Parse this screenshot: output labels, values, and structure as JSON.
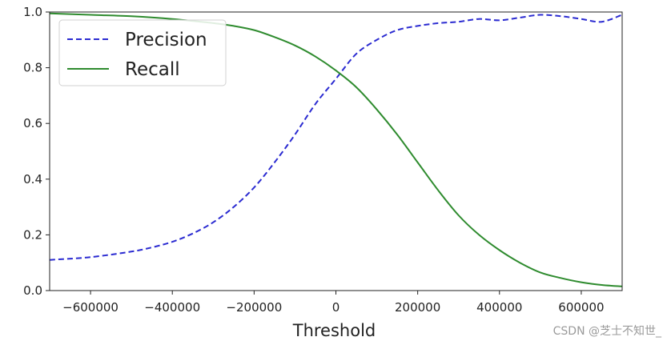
{
  "chart_data": {
    "type": "line",
    "title": "",
    "xlabel": "Threshold",
    "ylabel": "",
    "xlim": [
      -700000,
      700000
    ],
    "ylim": [
      0.0,
      1.0
    ],
    "xticks": [
      -600000,
      -400000,
      -200000,
      0,
      200000,
      400000,
      600000
    ],
    "xtick_labels": [
      "−600000",
      "−400000",
      "−200000",
      "0",
      "200000",
      "400000",
      "600000"
    ],
    "yticks": [
      0.0,
      0.2,
      0.4,
      0.6,
      0.8,
      1.0
    ],
    "ytick_labels": [
      "0.0",
      "0.2",
      "0.4",
      "0.6",
      "0.8",
      "1.0"
    ],
    "grid": false,
    "legend_position": "upper-left",
    "series": [
      {
        "name": "Precision",
        "style": "dashed",
        "color": "#2b2bd1",
        "x": [
          -700000,
          -600000,
          -500000,
          -450000,
          -400000,
          -350000,
          -300000,
          -250000,
          -200000,
          -150000,
          -100000,
          -50000,
          0,
          50000,
          100000,
          150000,
          200000,
          250000,
          300000,
          350000,
          400000,
          450000,
          500000,
          550000,
          600000,
          650000,
          700000
        ],
        "y": [
          0.11,
          0.12,
          0.14,
          0.155,
          0.175,
          0.205,
          0.245,
          0.3,
          0.37,
          0.46,
          0.56,
          0.67,
          0.76,
          0.85,
          0.9,
          0.935,
          0.95,
          0.96,
          0.965,
          0.975,
          0.97,
          0.98,
          0.99,
          0.985,
          0.975,
          0.965,
          0.99
        ]
      },
      {
        "name": "Recall",
        "style": "solid",
        "color": "#2e8b2e",
        "x": [
          -700000,
          -600000,
          -500000,
          -400000,
          -300000,
          -250000,
          -200000,
          -150000,
          -100000,
          -50000,
          0,
          50000,
          100000,
          150000,
          200000,
          250000,
          300000,
          350000,
          400000,
          450000,
          500000,
          550000,
          600000,
          650000,
          700000
        ],
        "y": [
          0.995,
          0.99,
          0.985,
          0.975,
          0.96,
          0.95,
          0.935,
          0.91,
          0.88,
          0.84,
          0.79,
          0.73,
          0.65,
          0.56,
          0.46,
          0.36,
          0.27,
          0.2,
          0.145,
          0.1,
          0.065,
          0.045,
          0.03,
          0.02,
          0.015
        ]
      }
    ]
  },
  "watermark": "CSDN @芝士不知世_"
}
